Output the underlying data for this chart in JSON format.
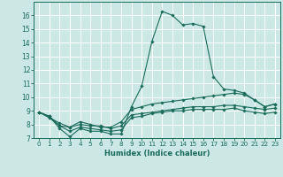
{
  "title": "",
  "xlabel": "Humidex (Indice chaleur)",
  "ylabel": "",
  "xlim": [
    -0.5,
    23.5
  ],
  "ylim": [
    7,
    17
  ],
  "yticks": [
    7,
    8,
    9,
    10,
    11,
    12,
    13,
    14,
    15,
    16
  ],
  "xticks": [
    0,
    1,
    2,
    3,
    4,
    5,
    6,
    7,
    8,
    9,
    10,
    11,
    12,
    13,
    14,
    15,
    16,
    17,
    18,
    19,
    20,
    21,
    22,
    23
  ],
  "background_color": "#cce8e4",
  "grid_color": "#ffffff",
  "line_color": "#1a6b5a",
  "lines": [
    {
      "x": [
        0,
        1,
        2,
        3,
        4,
        5,
        6,
        7,
        8,
        9,
        10,
        11,
        12,
        13,
        14,
        15,
        16,
        17,
        18,
        19,
        20,
        21,
        22,
        23
      ],
      "y": [
        8.9,
        8.6,
        7.7,
        7.1,
        7.7,
        7.5,
        7.5,
        7.3,
        7.3,
        9.3,
        10.8,
        14.1,
        16.3,
        16.0,
        15.3,
        15.4,
        15.2,
        11.5,
        10.6,
        10.5,
        10.3,
        9.8,
        9.3,
        9.5
      ]
    },
    {
      "x": [
        0,
        1,
        2,
        3,
        4,
        5,
        6,
        7,
        8,
        9,
        10,
        11,
        12,
        13,
        14,
        15,
        16,
        17,
        18,
        19,
        20,
        21,
        22,
        23
      ],
      "y": [
        8.9,
        8.6,
        7.9,
        7.8,
        8.2,
        8.0,
        7.8,
        7.8,
        8.2,
        9.1,
        9.3,
        9.5,
        9.6,
        9.7,
        9.8,
        9.9,
        10.0,
        10.1,
        10.2,
        10.3,
        10.2,
        9.8,
        9.3,
        9.5
      ]
    },
    {
      "x": [
        0,
        1,
        2,
        3,
        4,
        5,
        6,
        7,
        8,
        9,
        10,
        11,
        12,
        13,
        14,
        15,
        16,
        17,
        18,
        19,
        20,
        21,
        22,
        23
      ],
      "y": [
        8.9,
        8.5,
        8.1,
        7.8,
        8.0,
        7.9,
        7.9,
        7.7,
        7.9,
        8.7,
        8.8,
        8.9,
        9.0,
        9.1,
        9.2,
        9.3,
        9.3,
        9.3,
        9.4,
        9.4,
        9.3,
        9.2,
        9.1,
        9.2
      ]
    },
    {
      "x": [
        0,
        1,
        2,
        3,
        4,
        5,
        6,
        7,
        8,
        9,
        10,
        11,
        12,
        13,
        14,
        15,
        16,
        17,
        18,
        19,
        20,
        21,
        22,
        23
      ],
      "y": [
        8.9,
        8.5,
        7.9,
        7.5,
        7.8,
        7.7,
        7.6,
        7.5,
        7.6,
        8.5,
        8.6,
        8.8,
        8.9,
        9.0,
        9.0,
        9.1,
        9.1,
        9.1,
        9.1,
        9.2,
        9.0,
        8.9,
        8.8,
        8.9
      ]
    }
  ]
}
